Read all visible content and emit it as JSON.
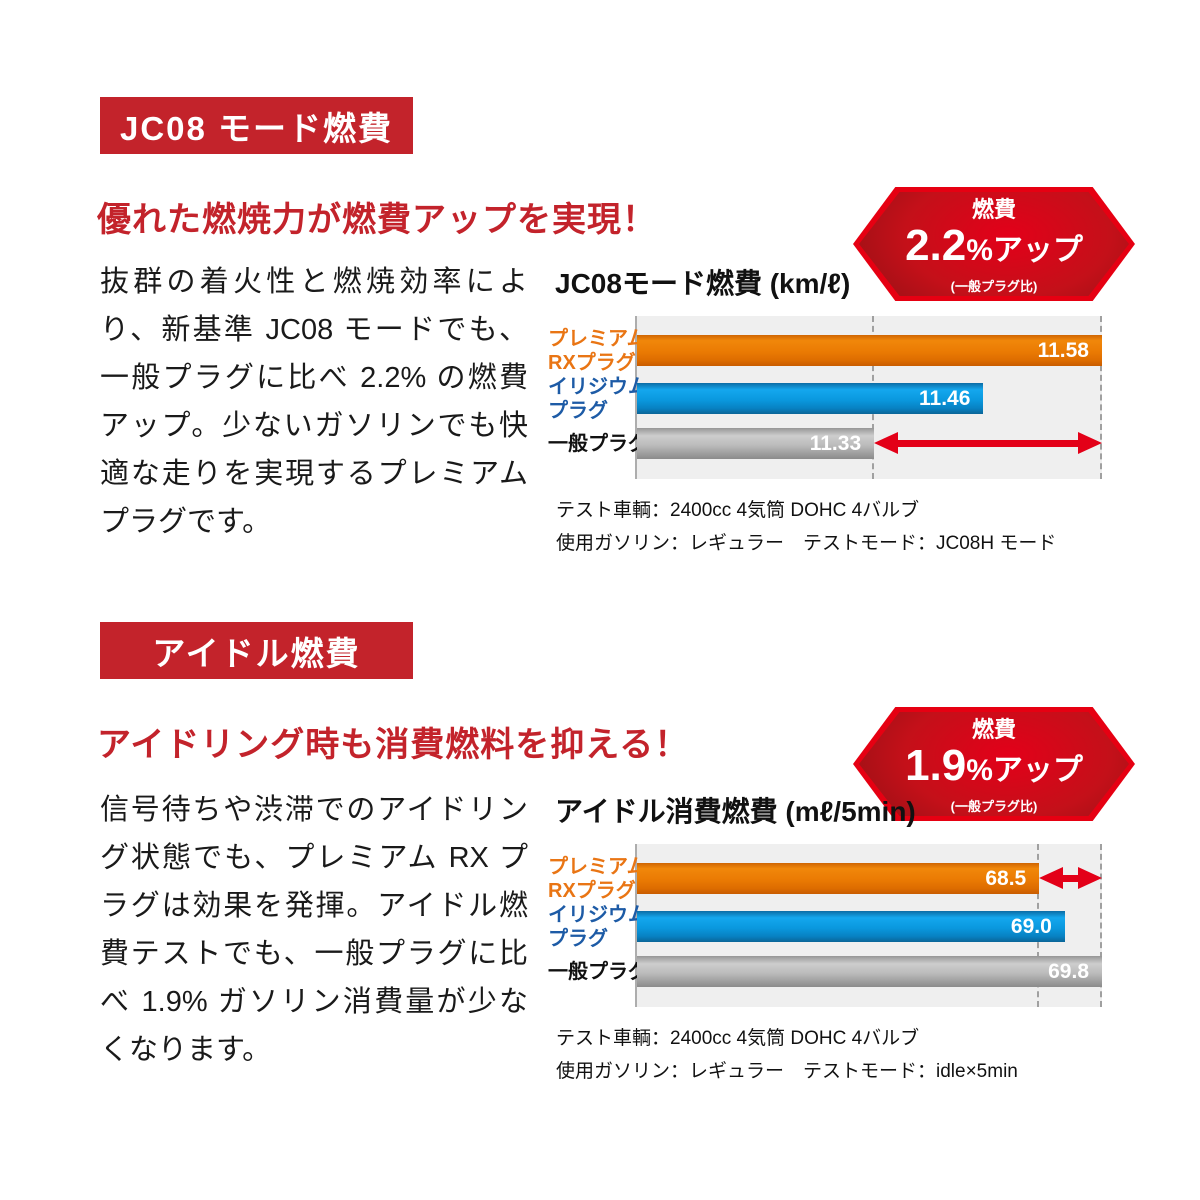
{
  "colors": {
    "badge_red": "#c3232b",
    "heading_red": "#c3232b",
    "hexagon_border_red": "#e60012",
    "hexagon_dark_red": "#7f0f12",
    "arrow_red": "#e30018",
    "bar_orange": "#ea7a03",
    "bar_blue": "#0a98de",
    "bar_gray": "#bcbcbc",
    "label_orange": "#e97514",
    "label_blue": "#1d5ba6",
    "plot_background": "#efefef",
    "page_background": "#ffffff"
  },
  "sections": [
    {
      "badge": "JC08 モード燃費",
      "heading": "優れた燃焼力が燃費アップを実現！",
      "body": "抜群の着火性と燃焼効率により、新基準 JC08 モードでも、一般プラグに比べ 2.2% の燃費アップ。少ないガソリンでも快適な走りを実現するプレミアムプラグです。",
      "hexagon": {
        "label": "燃費",
        "value": "2.2",
        "suffix": "%アップ",
        "note": "(一般プラグ比)"
      },
      "notes": [
        "テスト車輌：2400cc 4気筒 DOHC 4バルブ",
        "使用ガソリン：レギュラー　テストモード：JC08H モード"
      ]
    },
    {
      "badge": "アイドル燃費",
      "heading": "アイドリング時も消費燃料を抑える！",
      "body": "信号待ちや渋滞でのアイドリング状態でも、プレミアム RX プラグは効果を発揮。アイドル燃費テストでも、一般プラグに比べ 1.9% ガソリン消費量が少なくなります。",
      "hexagon": {
        "label": "燃費",
        "value": "1.9",
        "suffix": "%アップ",
        "note": "(一般プラグ比)"
      },
      "notes": [
        "テスト車輌：2400cc 4気筒 DOHC 4バルブ",
        "使用ガソリン：レギュラー　テストモード：idle×5min"
      ]
    }
  ],
  "chart_data": [
    {
      "type": "bar",
      "orientation": "horizontal",
      "title": "JC08モード燃費 (km/ℓ)",
      "categories": [
        "プレミアム\nRXプラグ",
        "イリジウム\nプラグ",
        "一般プラグ"
      ],
      "values": [
        11.58,
        11.46,
        11.33
      ],
      "value_labels": [
        "11.58",
        "11.46",
        "11.33"
      ],
      "unit": "km/ℓ",
      "xlim": [
        11.06,
        11.58
      ],
      "grid": false,
      "legend": "none",
      "annotation": "red double-headed arrow marks gap between 一般プラグ 11.33 and プレミアムRXプラグ 11.58",
      "layout": {
        "bar_width_pct": [
          100,
          74.5,
          51
        ],
        "bar_classes": [
          "bar-orange",
          "bar-blue",
          "bar-gray"
        ],
        "label_classes": [
          "lbl-orange",
          "lbl-blue",
          "lbl-dark"
        ],
        "series_names": [
          "premium-rx-plug",
          "iridium-plug",
          "standard-plug"
        ],
        "dashed_lines_pct": [
          51,
          100
        ],
        "arrow": {
          "row": 2,
          "from_pct": 51,
          "to_pct": 100
        }
      }
    },
    {
      "type": "bar",
      "orientation": "horizontal",
      "title": "アイドル消費燃費 (mℓ/5min)",
      "categories": [
        "プレミアム\nRXプラグ",
        "イリジウム\nプラグ",
        "一般プラグ"
      ],
      "values": [
        68.5,
        69.0,
        69.8
      ],
      "value_labels": [
        "68.5",
        "69.0",
        "69.8"
      ],
      "unit": "mℓ/5min",
      "xlim": [
        59.5,
        69.8
      ],
      "grid": false,
      "legend": "none",
      "annotation": "red double-headed arrow marks gap between プレミアムRXプラグ 68.5 and 一般プラグ 69.8",
      "layout": {
        "bar_width_pct": [
          86.5,
          92,
          100
        ],
        "bar_classes": [
          "bar-orange",
          "bar-blue",
          "bar-gray"
        ],
        "label_classes": [
          "lbl-orange",
          "lbl-blue",
          "lbl-dark"
        ],
        "series_names": [
          "premium-rx-plug",
          "iridium-plug",
          "standard-plug"
        ],
        "dashed_lines_pct": [
          86.5,
          100
        ],
        "arrow": {
          "row": 0,
          "from_pct": 86.5,
          "to_pct": 100
        }
      }
    }
  ]
}
